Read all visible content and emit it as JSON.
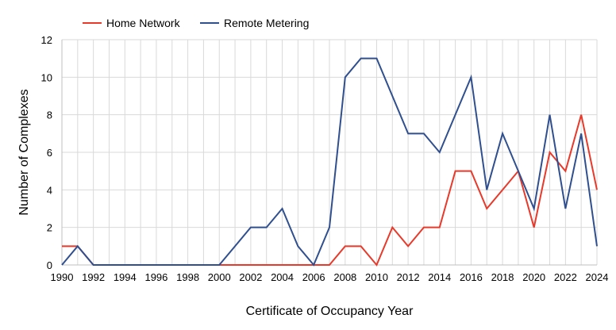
{
  "chart_data": {
    "type": "line",
    "title": "",
    "xlabel": "Certificate of Occupancy Year",
    "ylabel": "Number of Complexes",
    "xlim": [
      1990,
      2024
    ],
    "ylim": [
      0,
      12
    ],
    "x_ticks": [
      "1990",
      "1992",
      "1994",
      "1996",
      "1998",
      "2000",
      "2002",
      "2004",
      "2006",
      "2008",
      "2010",
      "2012",
      "2014",
      "2016",
      "2018",
      "2020",
      "2022",
      "2024"
    ],
    "y_ticks": [
      "0",
      "2",
      "4",
      "6",
      "8",
      "10",
      "12"
    ],
    "grid": true,
    "legend_position": "top-left",
    "x": [
      1990,
      1991,
      1992,
      1993,
      1994,
      1995,
      1996,
      1997,
      1998,
      1999,
      2000,
      2001,
      2002,
      2003,
      2004,
      2005,
      2006,
      2007,
      2008,
      2009,
      2010,
      2011,
      2012,
      2013,
      2014,
      2015,
      2016,
      2017,
      2018,
      2019,
      2020,
      2021,
      2022,
      2023,
      2024
    ],
    "series": [
      {
        "name": "Home Network",
        "color": "#e8392a",
        "values": [
          1,
          1,
          0,
          0,
          0,
          0,
          0,
          0,
          0,
          0,
          0,
          0,
          0,
          0,
          0,
          0,
          0,
          0,
          1,
          1,
          0,
          2,
          1,
          2,
          2,
          5,
          5,
          3,
          4,
          5,
          2,
          6,
          5,
          8,
          4
        ]
      },
      {
        "name": "Remote Metering",
        "color": "#2f4f8f",
        "values": [
          0,
          1,
          0,
          0,
          0,
          0,
          0,
          0,
          0,
          0,
          0,
          1,
          2,
          2,
          3,
          1,
          0,
          2,
          10,
          11,
          11,
          9,
          7,
          7,
          6,
          8,
          10,
          4,
          7,
          5,
          3,
          8,
          3,
          7,
          1
        ]
      }
    ]
  }
}
